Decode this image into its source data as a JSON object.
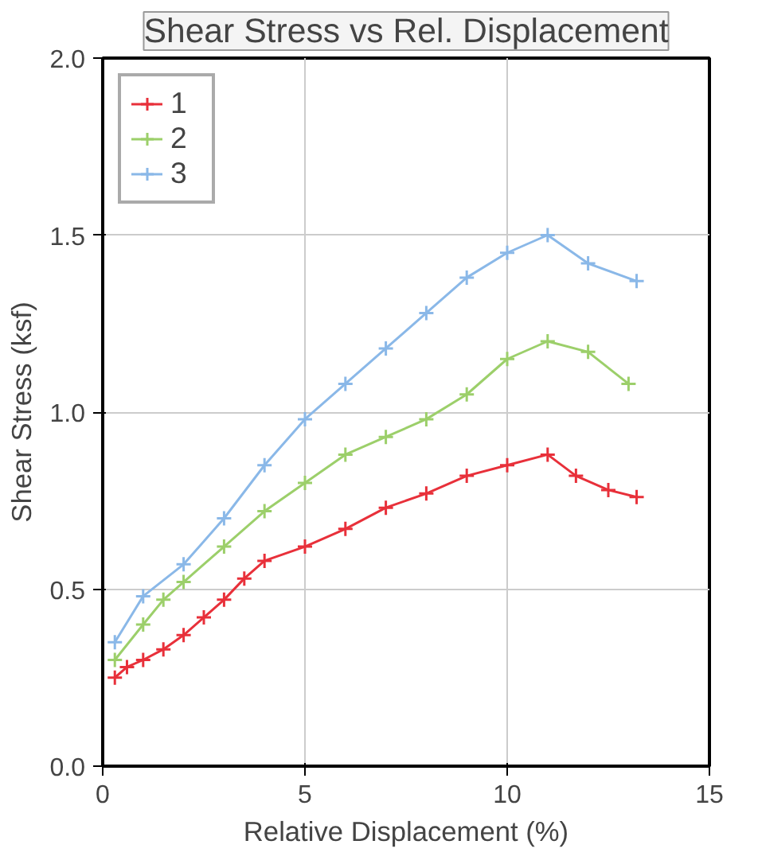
{
  "chart_data": {
    "type": "line",
    "title": "Shear Stress vs Rel. Displacement",
    "xlabel": "Relative Displacement (%)",
    "ylabel": "Shear Stress (ksf)",
    "xlim": [
      0,
      15
    ],
    "xticks": [
      0,
      5,
      10,
      15
    ],
    "ylim": [
      0,
      2.0
    ],
    "yticks": [
      {
        "value": 0,
        "label": "0.0"
      },
      0.5,
      {
        "value": 1,
        "label": "1.0"
      },
      1.5,
      {
        "value": 2,
        "label": "2.0"
      }
    ],
    "grid": true,
    "legend": "top left",
    "marker": "cross",
    "line_style": "solid",
    "series": [
      {
        "name": "1",
        "color": "#e8303a",
        "x": [
          0.3,
          0.6,
          1,
          1.5,
          2,
          2.5,
          3,
          3.5,
          4,
          5,
          6,
          7,
          8,
          9,
          10,
          11,
          11.7,
          12.5,
          13.2
        ],
        "values": [
          0.25,
          0.28,
          0.3,
          0.33,
          0.37,
          0.42,
          0.47,
          0.53,
          0.58,
          0.62,
          0.67,
          0.73,
          0.77,
          0.82,
          0.85,
          0.88,
          0.82,
          0.78,
          0.76
        ]
      },
      {
        "name": "2",
        "color": "#9ccf6a",
        "x": [
          0.3,
          1,
          1.5,
          2,
          3,
          4,
          5,
          6,
          7,
          8,
          9,
          10,
          11,
          12,
          13
        ],
        "values": [
          0.3,
          0.4,
          0.47,
          0.52,
          0.62,
          0.72,
          0.8,
          0.88,
          0.93,
          0.98,
          1.05,
          1.15,
          1.2,
          1.17,
          1.08
        ]
      },
      {
        "name": "3",
        "color": "#8ab8e8",
        "x": [
          0.3,
          1,
          2,
          3,
          4,
          5,
          6,
          7,
          8,
          9,
          10,
          11,
          12,
          13.2
        ],
        "values": [
          0.35,
          0.48,
          0.57,
          0.7,
          0.85,
          0.98,
          1.08,
          1.18,
          1.28,
          1.38,
          1.45,
          1.5,
          1.42,
          1.37
        ]
      }
    ]
  }
}
